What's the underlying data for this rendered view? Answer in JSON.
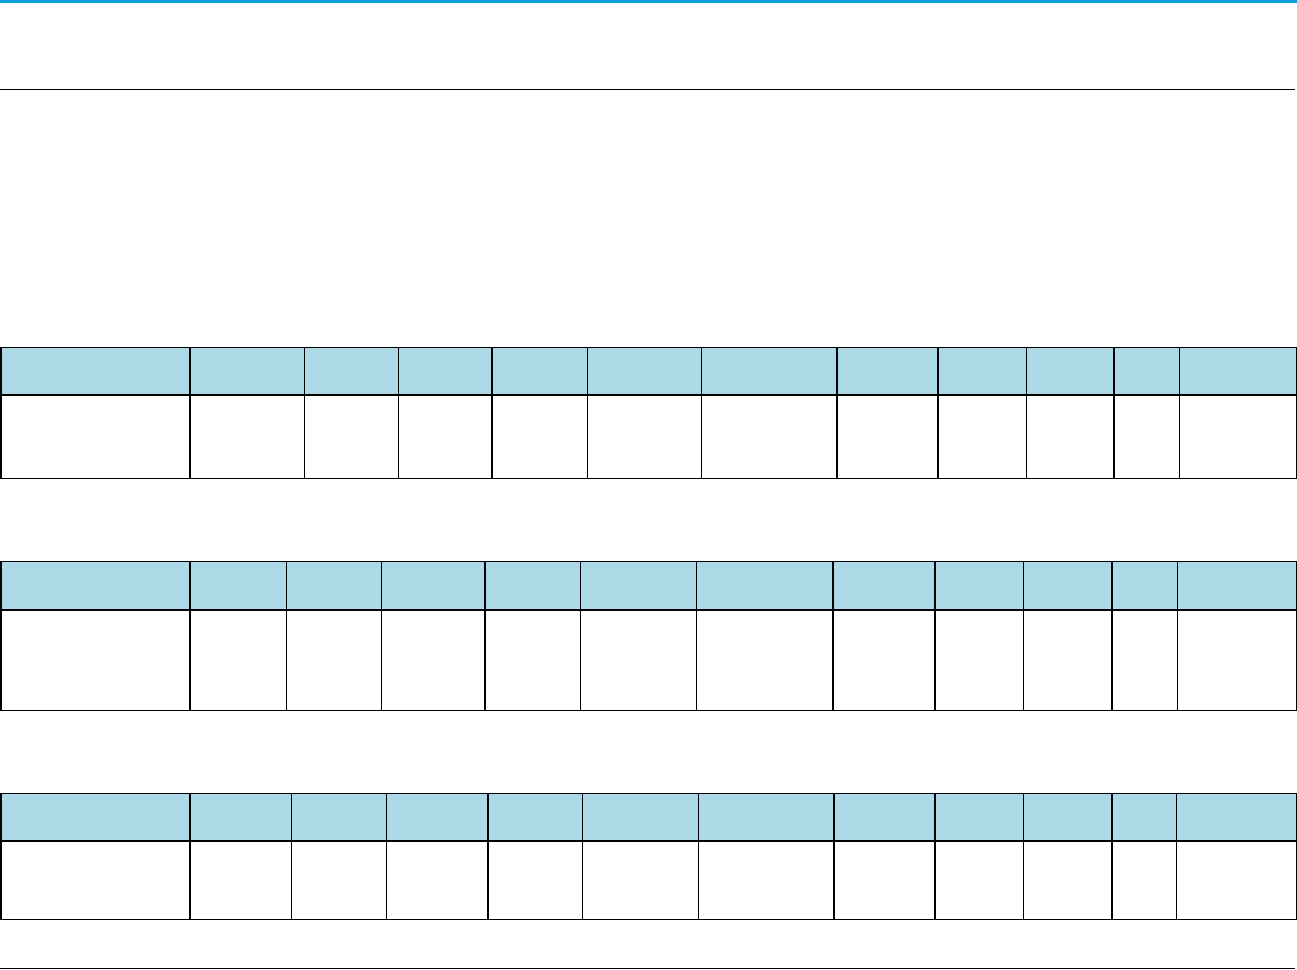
{
  "colors": {
    "accent_bar": "#0aa0dc",
    "header_fill": "#add8e6",
    "border": "#000000"
  },
  "tables": [
    {
      "headers": [
        "",
        "",
        "",
        "",
        "",
        "",
        "",
        "",
        "",
        "",
        "",
        ""
      ],
      "rows": [
        [
          "",
          "",
          "",
          "",
          "",
          "",
          "",
          "",
          "",
          "",
          "",
          ""
        ]
      ]
    },
    {
      "headers": [
        "",
        "",
        "",
        "",
        "",
        "",
        "",
        "",
        "",
        "",
        "",
        ""
      ],
      "rows": [
        [
          "",
          "",
          "",
          "",
          "",
          "",
          "",
          "",
          "",
          "",
          "",
          ""
        ]
      ]
    },
    {
      "headers": [
        "",
        "",
        "",
        "",
        "",
        "",
        "",
        "",
        "",
        "",
        "",
        ""
      ],
      "rows": [
        [
          "",
          "",
          "",
          "",
          "",
          "",
          "",
          "",
          "",
          "",
          "",
          ""
        ]
      ]
    }
  ]
}
